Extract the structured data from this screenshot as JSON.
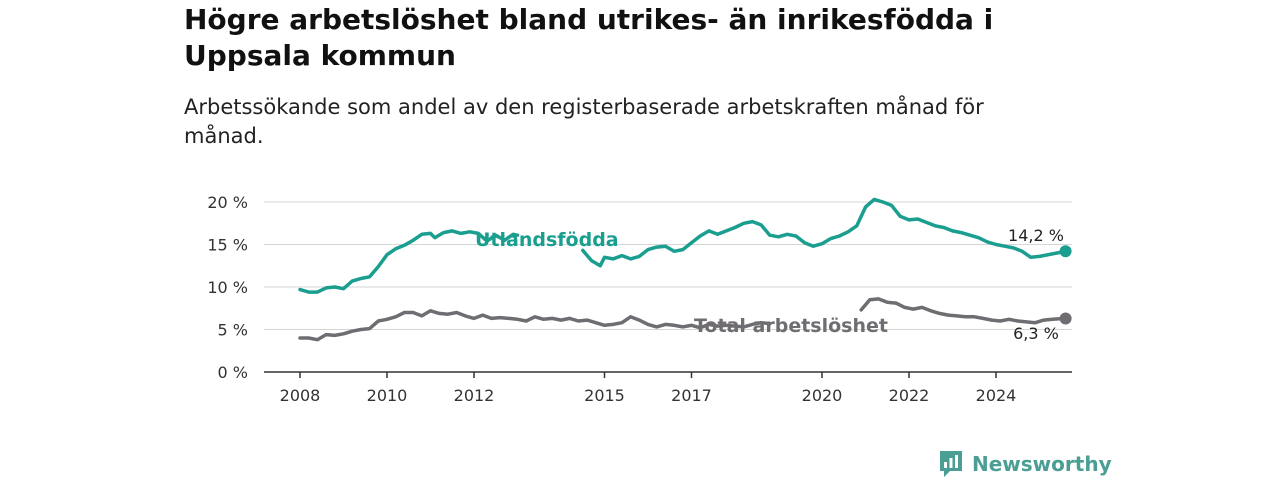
{
  "title": "Högre arbetslöshet bland utrikes- än inrikesfödda i Uppsala kommun",
  "subtitle": "Arbetssökande som andel av den registerbaserade arbetskraften månad för månad.",
  "brand": {
    "name": "Newsworthy",
    "color": "#4a9e94"
  },
  "chart_data": {
    "type": "line",
    "xlim": [
      2007.6,
      2025.0
    ],
    "ylim": [
      0,
      20
    ],
    "x_ticks": [
      {
        "value": 2008,
        "label": "2008"
      },
      {
        "value": 2010,
        "label": "2010"
      },
      {
        "value": 2012,
        "label": "2012"
      },
      {
        "value": 2015,
        "label": "2015"
      },
      {
        "value": 2017,
        "label": "2017"
      },
      {
        "value": 2020,
        "label": "2020"
      },
      {
        "value": 2022,
        "label": "2022"
      },
      {
        "value": 2024,
        "label": "2024"
      }
    ],
    "y_ticks": [
      {
        "value": 0,
        "label": "0 %"
      },
      {
        "value": 5,
        "label": "5 %"
      },
      {
        "value": 10,
        "label": "10 %"
      },
      {
        "value": 15,
        "label": "15 %"
      },
      {
        "value": 20,
        "label": "20 %"
      }
    ],
    "grid": true,
    "series": [
      {
        "name": "Utlandsfödda",
        "color": "#1a9e8f",
        "end_label": "14,2 %",
        "segments": [
          [
            [
              2008.0,
              9.7
            ],
            [
              2008.2,
              9.4
            ],
            [
              2008.4,
              9.4
            ],
            [
              2008.6,
              9.9
            ],
            [
              2008.8,
              10.0
            ],
            [
              2009.0,
              9.8
            ],
            [
              2009.2,
              10.7
            ],
            [
              2009.4,
              11.0
            ],
            [
              2009.6,
              11.2
            ],
            [
              2009.8,
              12.4
            ],
            [
              2010.0,
              13.8
            ],
            [
              2010.2,
              14.5
            ],
            [
              2010.4,
              14.9
            ],
            [
              2010.6,
              15.5
            ],
            [
              2010.8,
              16.2
            ],
            [
              2011.0,
              16.3
            ],
            [
              2011.1,
              15.8
            ],
            [
              2011.3,
              16.4
            ],
            [
              2011.5,
              16.6
            ],
            [
              2011.7,
              16.3
            ],
            [
              2011.9,
              16.5
            ],
            [
              2012.1,
              16.3
            ],
            [
              2012.3,
              15.4
            ],
            [
              2012.5,
              16.1
            ],
            [
              2012.7,
              15.5
            ],
            [
              2012.9,
              16.2
            ],
            [
              2013.0,
              16.1
            ]
          ],
          [
            [
              2014.5,
              14.3
            ],
            [
              2014.7,
              13.1
            ],
            [
              2014.9,
              12.5
            ],
            [
              2015.0,
              13.5
            ],
            [
              2015.2,
              13.3
            ],
            [
              2015.4,
              13.7
            ],
            [
              2015.6,
              13.3
            ],
            [
              2015.8,
              13.6
            ],
            [
              2016.0,
              14.4
            ],
            [
              2016.2,
              14.7
            ],
            [
              2016.4,
              14.8
            ],
            [
              2016.6,
              14.2
            ],
            [
              2016.8,
              14.4
            ],
            [
              2017.0,
              15.2
            ],
            [
              2017.2,
              16.0
            ],
            [
              2017.4,
              16.6
            ],
            [
              2017.6,
              16.2
            ],
            [
              2017.8,
              16.6
            ],
            [
              2018.0,
              17.0
            ],
            [
              2018.2,
              17.5
            ],
            [
              2018.4,
              17.7
            ],
            [
              2018.6,
              17.3
            ],
            [
              2018.8,
              16.1
            ],
            [
              2019.0,
              15.9
            ],
            [
              2019.2,
              16.2
            ],
            [
              2019.4,
              16.0
            ],
            [
              2019.6,
              15.2
            ],
            [
              2019.8,
              14.8
            ],
            [
              2020.0,
              15.1
            ],
            [
              2020.2,
              15.7
            ],
            [
              2020.4,
              16.0
            ],
            [
              2020.6,
              16.5
            ],
            [
              2020.8,
              17.2
            ],
            [
              2021.0,
              19.4
            ],
            [
              2021.2,
              20.3
            ],
            [
              2021.4,
              20.0
            ],
            [
              2021.6,
              19.6
            ],
            [
              2021.8,
              18.3
            ],
            [
              2022.0,
              17.9
            ],
            [
              2022.2,
              18.0
            ],
            [
              2022.4,
              17.6
            ],
            [
              2022.6,
              17.2
            ],
            [
              2022.8,
              17.0
            ],
            [
              2023.0,
              16.6
            ],
            [
              2023.2,
              16.4
            ],
            [
              2023.4,
              16.1
            ],
            [
              2023.6,
              15.8
            ],
            [
              2023.8,
              15.3
            ],
            [
              2024.0,
              15.0
            ],
            [
              2024.2,
              14.8
            ],
            [
              2024.4,
              14.6
            ],
            [
              2024.6,
              14.2
            ],
            [
              2024.8,
              13.5
            ],
            [
              2025.0,
              13.6
            ],
            [
              2025.2,
              13.8
            ],
            [
              2025.4,
              14.0
            ],
            [
              2025.6,
              14.2
            ]
          ]
        ]
      },
      {
        "name": "Total arbetslöshet",
        "color": "#6f6d72",
        "end_label": "6,3 %",
        "segments": [
          [
            [
              2008.0,
              4.0
            ],
            [
              2008.2,
              4.0
            ],
            [
              2008.4,
              3.8
            ],
            [
              2008.6,
              4.4
            ],
            [
              2008.8,
              4.3
            ],
            [
              2009.0,
              4.5
            ],
            [
              2009.2,
              4.8
            ],
            [
              2009.4,
              5.0
            ],
            [
              2009.6,
              5.1
            ],
            [
              2009.8,
              6.0
            ],
            [
              2010.0,
              6.2
            ],
            [
              2010.2,
              6.5
            ],
            [
              2010.4,
              7.0
            ],
            [
              2010.6,
              7.0
            ],
            [
              2010.8,
              6.6
            ],
            [
              2011.0,
              7.2
            ],
            [
              2011.2,
              6.9
            ],
            [
              2011.4,
              6.8
            ],
            [
              2011.6,
              7.0
            ],
            [
              2011.8,
              6.6
            ],
            [
              2012.0,
              6.3
            ],
            [
              2012.2,
              6.7
            ],
            [
              2012.4,
              6.3
            ],
            [
              2012.6,
              6.4
            ],
            [
              2012.8,
              6.3
            ],
            [
              2013.0,
              6.2
            ],
            [
              2013.2,
              6.0
            ],
            [
              2013.4,
              6.5
            ],
            [
              2013.6,
              6.2
            ],
            [
              2013.8,
              6.3
            ],
            [
              2014.0,
              6.1
            ],
            [
              2014.2,
              6.3
            ],
            [
              2014.4,
              6.0
            ],
            [
              2014.6,
              6.1
            ],
            [
              2014.8,
              5.8
            ],
            [
              2015.0,
              5.5
            ],
            [
              2015.2,
              5.6
            ],
            [
              2015.4,
              5.8
            ],
            [
              2015.6,
              6.5
            ],
            [
              2015.8,
              6.1
            ],
            [
              2016.0,
              5.6
            ],
            [
              2016.2,
              5.3
            ],
            [
              2016.4,
              5.6
            ],
            [
              2016.6,
              5.5
            ],
            [
              2016.8,
              5.3
            ],
            [
              2017.0,
              5.5
            ],
            [
              2017.2,
              5.2
            ],
            [
              2017.4,
              5.6
            ],
            [
              2017.6,
              5.4
            ],
            [
              2017.8,
              5.5
            ],
            [
              2018.0,
              5.4
            ],
            [
              2018.2,
              5.3
            ],
            [
              2018.4,
              5.6
            ],
            [
              2018.6,
              5.8
            ],
            [
              2018.8,
              5.7
            ]
          ],
          [
            [
              2020.9,
              7.3
            ],
            [
              2021.1,
              8.5
            ],
            [
              2021.3,
              8.6
            ],
            [
              2021.5,
              8.2
            ],
            [
              2021.7,
              8.1
            ],
            [
              2021.9,
              7.6
            ],
            [
              2022.1,
              7.4
            ],
            [
              2022.3,
              7.6
            ],
            [
              2022.5,
              7.2
            ],
            [
              2022.7,
              6.9
            ],
            [
              2022.9,
              6.7
            ],
            [
              2023.1,
              6.6
            ],
            [
              2023.3,
              6.5
            ],
            [
              2023.5,
              6.5
            ],
            [
              2023.7,
              6.3
            ],
            [
              2023.9,
              6.1
            ],
            [
              2024.1,
              6.0
            ],
            [
              2024.3,
              6.2
            ],
            [
              2024.5,
              6.0
            ],
            [
              2024.7,
              5.9
            ],
            [
              2024.9,
              5.8
            ],
            [
              2025.1,
              6.1
            ],
            [
              2025.3,
              6.2
            ],
            [
              2025.6,
              6.3
            ]
          ]
        ]
      }
    ]
  }
}
